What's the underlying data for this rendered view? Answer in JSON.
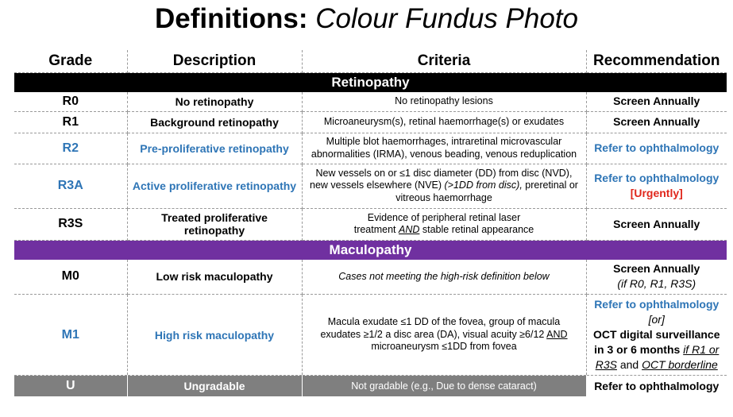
{
  "title": {
    "bold": "Definitions:",
    "italic": "Colour Fundus Photo"
  },
  "headers": {
    "grade": "Grade",
    "description": "Description",
    "criteria": "Criteria",
    "recommendation": "Recommendation"
  },
  "sections": {
    "retinopathy": "Retinopathy",
    "maculopathy": "Maculopathy"
  },
  "rows": {
    "r0": {
      "grade": "R0",
      "description": "No retinopathy",
      "criteria": "No retinopathy lesions",
      "recommendation": "Screen Annually"
    },
    "r1": {
      "grade": "R1",
      "description": "Background retinopathy",
      "criteria": "Microaneurysm(s), retinal haemorrhage(s) or exudates",
      "recommendation": "Screen Annually"
    },
    "r2": {
      "grade": "R2",
      "description": "Pre-proliferative retinopathy",
      "criteria_1": "Multiple blot haemorrhages, intraretinal microvascular",
      "criteria_2": "abnormalities (IRMA), venous beading, venous reduplication",
      "recommendation": "Refer to ophthalmology"
    },
    "r3a": {
      "grade": "R3A",
      "description": "Active proliferative retinopathy",
      "criteria_1": "New vessels on or ≤1 disc diameter (DD) from disc (NVD),",
      "criteria_2a": "new vessels elsewhere (NVE) ",
      "criteria_2b": "(>1DD from disc),",
      "criteria_2c": " preretinal or",
      "criteria_3": "vitreous haemorrhage",
      "recommendation": "Refer to ophthalmology",
      "urgency": "[Urgently]"
    },
    "r3s": {
      "grade": "R3S",
      "description": "Treated proliferative retinopathy",
      "criteria_1": "Evidence of peripheral retinal laser",
      "criteria_2a": "treatment ",
      "criteria_2b": "AND",
      "criteria_2c": " stable retinal appearance",
      "recommendation": "Screen Annually"
    },
    "m0": {
      "grade": "M0",
      "description": "Low risk maculopathy",
      "criteria": "Cases not meeting the high-risk definition below",
      "recommendation": "Screen Annually",
      "recommendation_note": "(if R0, R1, R3S)"
    },
    "m1": {
      "grade": "M1",
      "description": "High risk maculopathy",
      "criteria_1": "Macula exudate ≤1 DD of the fovea,  group of macula",
      "criteria_2a": "exudates ≥1/2 a disc area (DA), visual acuity ≥6/12 ",
      "criteria_2b": "AND",
      "criteria_3": "microaneurysm ≤1DD from fovea",
      "rec_1": "Refer to ophthalmology",
      "rec_2": "[or]",
      "rec_3": "OCT digital surveillance",
      "rec_4": "in 3 or 6 months ",
      "rec_5": "if R1 or",
      "rec_6": "R3S",
      "rec_7": " and ",
      "rec_8": "OCT borderline"
    },
    "u": {
      "grade": "U",
      "description": "Ungradable",
      "criteria": "Not gradable (e.g., Due to dense cataract)",
      "recommendation": "Refer to ophthalmology"
    }
  }
}
